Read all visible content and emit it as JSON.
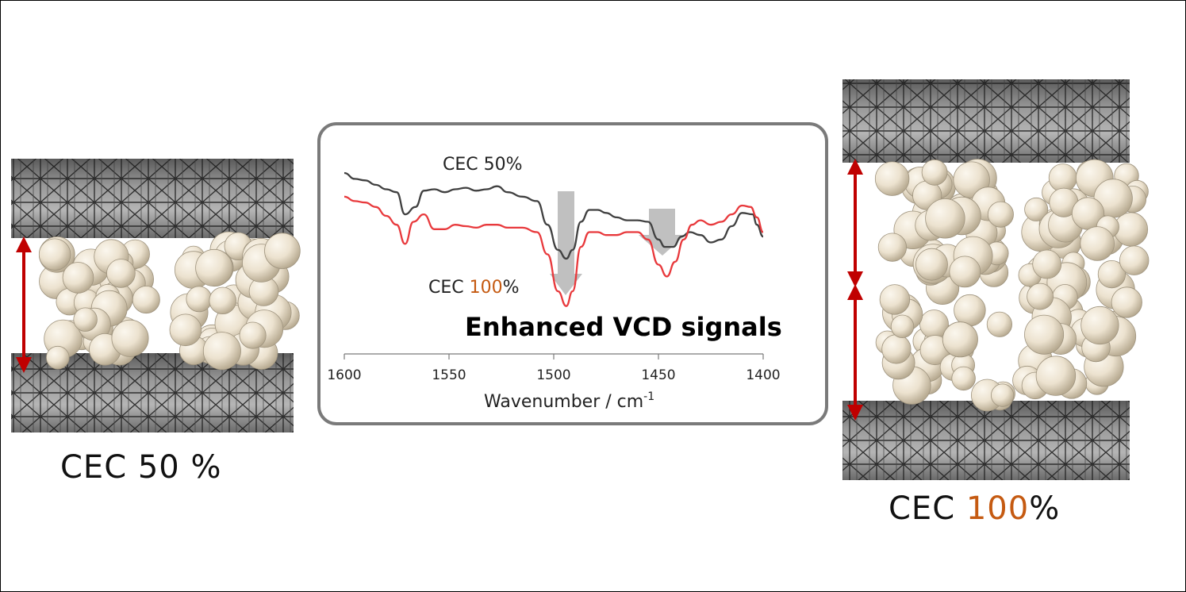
{
  "left_panel": {
    "label_prefix": "CEC 50 %"
  },
  "right_panel": {
    "label_prefix": "CEC ",
    "label_value": "100",
    "label_suffix": "%"
  },
  "spectrum": {
    "series_top_label": "CEC 50%",
    "series_bottom_label_prefix": "CEC ",
    "series_bottom_label_value": "100",
    "series_bottom_label_suffix": "%",
    "headline": "Enhanced VCD signals",
    "x_axis_label": "Wavenumber / cm",
    "x_axis_label_sup": "-1"
  },
  "colors": {
    "series_50": "#404040",
    "series_100": "#e8393c",
    "accent_100": "#c55a11",
    "arrow": "#c00000",
    "sphere": "#ece2cf",
    "layer": "#8a8a8a",
    "panel_border": "#7a7a7a"
  },
  "chart_data": {
    "type": "line",
    "xlabel": "Wavenumber / cm-1",
    "ylabel": "",
    "xlim": [
      1600,
      1400
    ],
    "x_ticks": [
      1600,
      1550,
      1500,
      1450,
      1400
    ],
    "series": [
      {
        "name": "CEC 50%",
        "x": [
          1600,
          1595,
          1590,
          1585,
          1580,
          1575,
          1571,
          1566,
          1562,
          1557,
          1552,
          1547,
          1542,
          1537,
          1532,
          1527,
          1522,
          1515,
          1508,
          1503,
          1498,
          1494,
          1491,
          1487,
          1483,
          1479,
          1475,
          1470,
          1465,
          1460,
          1455,
          1450,
          1447,
          1443,
          1439,
          1435,
          1430,
          1425,
          1420,
          1415,
          1410,
          1405,
          1403,
          1400
        ],
        "y": [
          0.85,
          0.81,
          0.8,
          0.77,
          0.74,
          0.72,
          0.57,
          0.62,
          0.73,
          0.74,
          0.72,
          0.74,
          0.75,
          0.73,
          0.74,
          0.76,
          0.72,
          0.69,
          0.66,
          0.5,
          0.33,
          0.27,
          0.33,
          0.52,
          0.6,
          0.6,
          0.58,
          0.55,
          0.53,
          0.53,
          0.52,
          0.4,
          0.35,
          0.35,
          0.42,
          0.45,
          0.43,
          0.38,
          0.4,
          0.49,
          0.58,
          0.57,
          0.5,
          0.42
        ]
      },
      {
        "name": "CEC 100%",
        "x": [
          1600,
          1595,
          1590,
          1585,
          1580,
          1575,
          1571,
          1567,
          1562,
          1557,
          1552,
          1547,
          1542,
          1537,
          1532,
          1527,
          1522,
          1515,
          1508,
          1503,
          1498,
          1494,
          1491,
          1487,
          1483,
          1479,
          1475,
          1470,
          1465,
          1460,
          1455,
          1450,
          1446,
          1442,
          1438,
          1434,
          1430,
          1425,
          1420,
          1415,
          1410,
          1406,
          1403,
          1400
        ],
        "y": [
          0.69,
          0.66,
          0.65,
          0.62,
          0.56,
          0.5,
          0.37,
          0.52,
          0.57,
          0.47,
          0.47,
          0.5,
          0.49,
          0.48,
          0.5,
          0.5,
          0.48,
          0.48,
          0.45,
          0.3,
          0.05,
          -0.05,
          0.05,
          0.35,
          0.45,
          0.45,
          0.43,
          0.43,
          0.45,
          0.45,
          0.4,
          0.23,
          0.15,
          0.25,
          0.4,
          0.5,
          0.53,
          0.5,
          0.52,
          0.57,
          0.63,
          0.62,
          0.55,
          0.45
        ]
      }
    ]
  }
}
